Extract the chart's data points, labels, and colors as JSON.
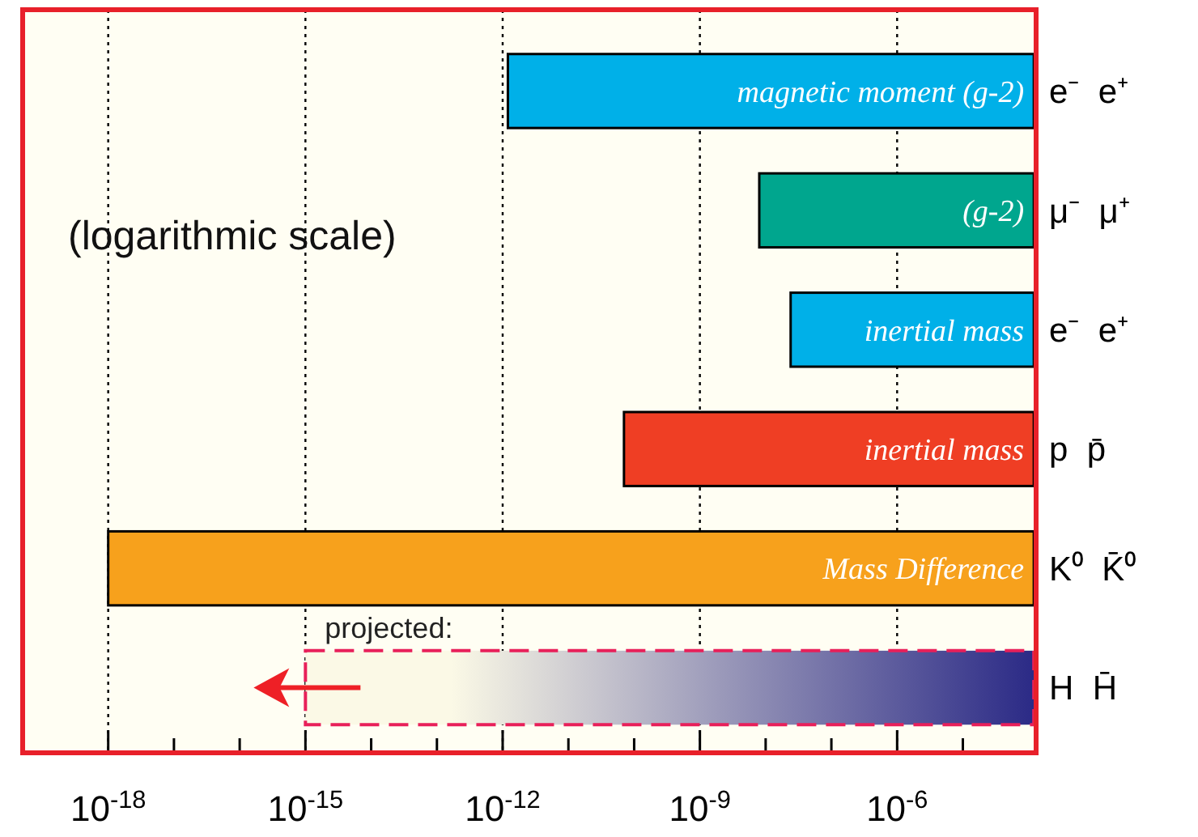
{
  "chart_data": {
    "type": "bar",
    "orientation": "horizontal",
    "log": "x",
    "grid": "x",
    "categories": [
      "e⁻  e⁺",
      "μ⁻  μ⁺",
      "e⁻  e⁺",
      "p  p̄",
      "K⁰  K̄⁰",
      "H  H̄"
    ],
    "xlim": [
      5e-20,
      0.00013
    ],
    "xticks": [
      {
        "value": 1e-18,
        "label": "10$^{-18}$"
      },
      {
        "value": 1e-17,
        "label": null
      },
      {
        "value": 1e-16,
        "label": null
      },
      {
        "value": 1e-15,
        "label": "10$^{-15}$"
      },
      {
        "value": 1e-14,
        "label": null
      },
      {
        "value": 1e-13,
        "label": null
      },
      {
        "value": 1e-12,
        "label": "10$^{-12}$"
      },
      {
        "value": 1e-11,
        "label": null
      },
      {
        "value": 1e-10,
        "label": null
      },
      {
        "value": 1e-09,
        "label": "10$^{-9}$"
      },
      {
        "value": 1e-08,
        "label": null
      },
      {
        "value": 1e-07,
        "label": null
      },
      {
        "value": 1e-06,
        "label": "10$^{-6}$"
      },
      {
        "value": 1e-05,
        "label": null
      }
    ],
    "series": [
      {
        "colors": [
          "#00b0e8",
          "#00a68e",
          "#00b0e8",
          "#ef3e24",
          "#f7a11c",
          null
        ],
        "base": [
          1.2e-12,
          8e-09,
          2.4e-08,
          7e-11,
          1e-18,
          null
        ],
        "values": [
          0.00012,
          0.00012,
          0.00012,
          0.00012,
          0.00012,
          null
        ],
        "value_labels": [
          "magnetic  moment  (g-2)",
          "(g-2)",
          "inertial mass",
          "inertial mass",
          "Mass Difference",
          null
        ],
        "line_style": "solid"
      },
      {
        "color": "#2b2a86",
        "base": [
          null,
          null,
          null,
          null,
          null,
          1e-15
        ],
        "values": [
          null,
          null,
          null,
          null,
          null,
          0.00012
        ],
        "line_style": "dashed"
      }
    ],
    "annotations": [
      "(logarithmic scale)",
      {
        "text": "projected:",
        "x": 1e-15,
        "y": "H  H̄"
      }
    ]
  }
}
